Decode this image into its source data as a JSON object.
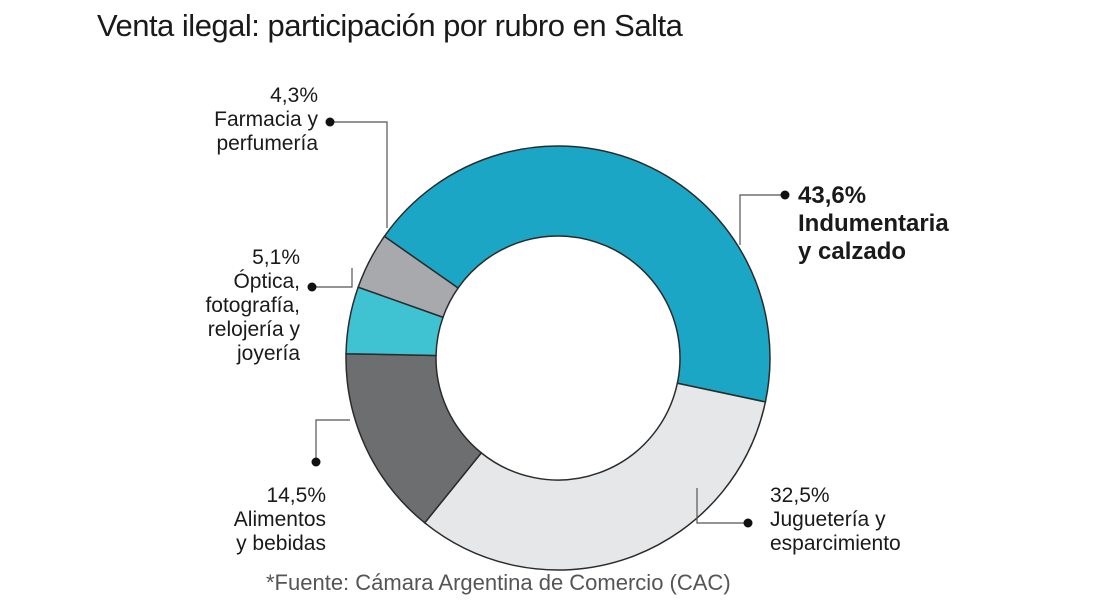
{
  "chart_data": {
    "type": "pie",
    "title": "Venta ilegal: participación por rubro en Salta",
    "source": "*Fuente: Cámara Argentina de Comercio (CAC)",
    "unit": "%",
    "slices": [
      {
        "key": "indumentaria",
        "pct_label": "43,6%",
        "label": "Indumentaria\ny calzado",
        "value": 43.6,
        "color": "#1aa6c4"
      },
      {
        "key": "jugueteria",
        "pct_label": "32,5%",
        "label": "Juguetería y\nesparcimiento",
        "value": 32.5,
        "color": "#e6e7e8"
      },
      {
        "key": "alimentos",
        "pct_label": "14,5%",
        "label": "Alimentos\ny bebidas",
        "value": 14.5,
        "color": "#6d6e70"
      },
      {
        "key": "optica",
        "pct_label": "5,1%",
        "label": "Óptica,\nfotografía,\nrelojería y\njoyería",
        "value": 5.1,
        "color": "#3fc3d3"
      },
      {
        "key": "farmacia",
        "pct_label": "4,3%",
        "label": "Farmacia y\nperfumería",
        "value": 4.3,
        "color": "#a7a9ac"
      }
    ]
  }
}
